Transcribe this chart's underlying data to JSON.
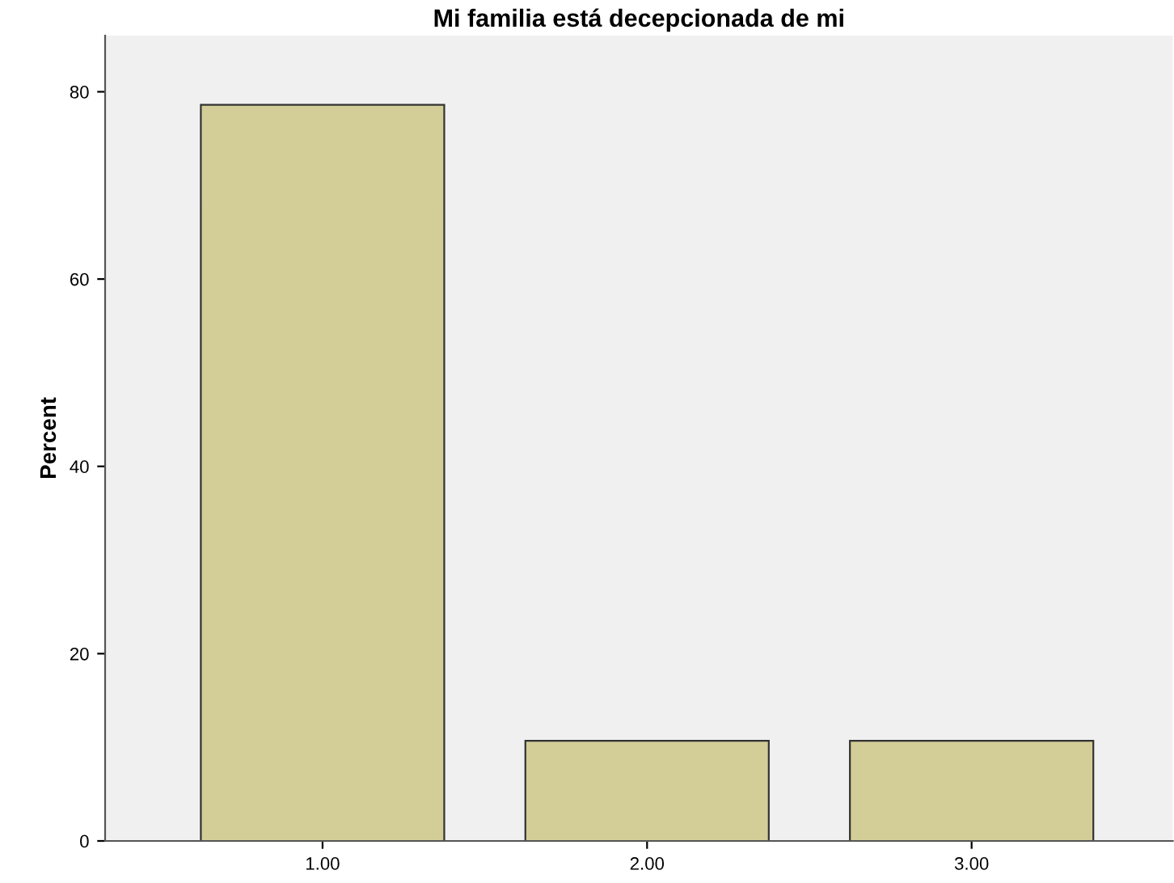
{
  "chart_data": {
    "type": "bar",
    "title": "Mi familia está decepcionada de mi",
    "ylabel": "Percent",
    "categories": [
      "1.00",
      "2.00",
      "3.00"
    ],
    "values": [
      78.6,
      10.7,
      10.7
    ],
    "color": "#d3ce97",
    "ylim": [
      0,
      86
    ],
    "yticks": [
      0,
      20,
      40,
      60,
      80
    ],
    "grid": false
  }
}
